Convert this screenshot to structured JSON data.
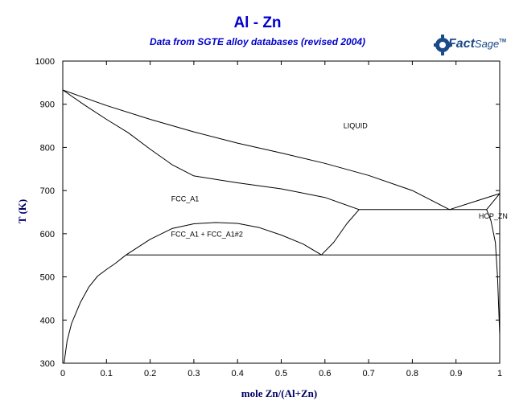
{
  "header": {
    "title": "Al - Zn",
    "subtitle": "Data from SGTE alloy databases (revised 2004)",
    "logo_main": "Fact",
    "logo_sage": "Sage",
    "logo_tm": "TM"
  },
  "chart_data": {
    "type": "line",
    "title": "Al - Zn",
    "subtitle": "Data from SGTE alloy databases (revised 2004)",
    "xlabel": "mole Zn/(Al+Zn)",
    "ylabel": "T (K)",
    "xlim": [
      0,
      1
    ],
    "ylim": [
      300,
      1000
    ],
    "xticks": [
      0,
      0.1,
      0.2,
      0.3,
      0.4,
      0.5,
      0.6,
      0.7,
      0.8,
      0.9,
      1
    ],
    "xtick_labels": [
      "0",
      "0.1",
      "0.2",
      "0.3",
      "0.4",
      "0.5",
      "0.6",
      "0.7",
      "0.8",
      "0.9",
      "1"
    ],
    "yticks": [
      300,
      400,
      500,
      600,
      700,
      800,
      900,
      1000
    ],
    "ytick_labels": [
      "300",
      "400",
      "500",
      "600",
      "700",
      "800",
      "900",
      "1000"
    ],
    "grid": false,
    "line_color": "#000000",
    "series": [
      {
        "x": [
          0,
          0.05,
          0.1,
          0.2,
          0.3,
          0.4,
          0.5,
          0.6,
          0.7,
          0.8,
          0.885
        ],
        "y": [
          933,
          915,
          897,
          865,
          836,
          810,
          787,
          763,
          735,
          700,
          656
        ]
      },
      {
        "x": [
          0,
          0.05,
          0.1,
          0.15,
          0.2,
          0.25,
          0.3,
          0.4,
          0.5,
          0.6,
          0.678
        ],
        "y": [
          933,
          898,
          865,
          834,
          796,
          760,
          734,
          718,
          704,
          684,
          656
        ]
      },
      {
        "x": [
          0.885,
          0.95,
          1
        ],
        "y": [
          656,
          677,
          693
        ]
      },
      {
        "x": [
          0.97,
          1
        ],
        "y": [
          656,
          693
        ]
      },
      {
        "x": [
          0.678,
          0.97
        ],
        "y": [
          656,
          656
        ]
      },
      {
        "x": [
          0.592,
          0.62,
          0.65,
          0.678
        ],
        "y": [
          551,
          580,
          623,
          656
        ]
      },
      {
        "x": [
          0.145,
          0.2,
          0.25,
          0.3,
          0.35,
          0.4,
          0.45,
          0.5,
          0.55,
          0.592
        ],
        "y": [
          551,
          587,
          612,
          623,
          626,
          624,
          614,
          597,
          576,
          551
        ]
      },
      {
        "x": [
          0.145,
          1
        ],
        "y": [
          551,
          551
        ]
      },
      {
        "x": [
          0.003,
          0.01,
          0.02,
          0.04,
          0.06,
          0.08,
          0.1,
          0.12,
          0.145
        ],
        "y": [
          300,
          352,
          392,
          440,
          477,
          502,
          517,
          531,
          551
        ]
      },
      {
        "x": [
          0.97,
          0.98,
          0.99,
          0.995,
          1
        ],
        "y": [
          656,
          630,
          580,
          500,
          365
        ]
      }
    ],
    "annotations": [
      {
        "text": "LIQUID",
        "x": 0.67,
        "y": 845
      },
      {
        "text": "FCC_A1",
        "x": 0.28,
        "y": 675
      },
      {
        "text": "FCC_A1 + FCC_A1#2",
        "x": 0.33,
        "y": 593
      },
      {
        "text": "HCP_ZN",
        "x": 0.985,
        "y": 635
      }
    ]
  }
}
